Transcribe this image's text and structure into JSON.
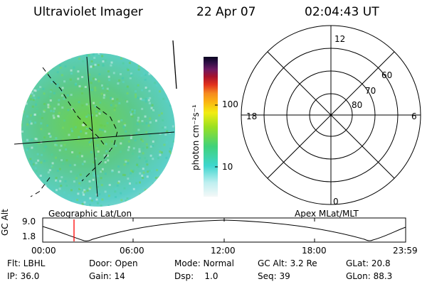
{
  "header": {
    "instrument": "Ultraviolet Imager",
    "date": "22 Apr 07",
    "time": "02:04:43 UT"
  },
  "colorbar": {
    "unit_label": "photon cm⁻²s⁻¹",
    "ticks": [
      "100",
      "10"
    ]
  },
  "polar_plot": {
    "mlt_labels": {
      "top": "12",
      "left": "18",
      "right": "6",
      "bottom": "0"
    },
    "lat_labels": [
      "60",
      "70",
      "80"
    ]
  },
  "orbit_panel": {
    "y_label": "GC Alt",
    "y_ticks": [
      "9.0",
      "1.8"
    ],
    "left_title": "Geographic Lat/Lon",
    "right_title": "Apex MLat/MLT",
    "x_ticks": [
      "00:00",
      "06:00",
      "12:00",
      "18:00",
      "23:59"
    ],
    "current_marker_color": "#ff0000"
  },
  "status": {
    "flt": "Flt: LBHL",
    "door": "Door: Open",
    "mode": "Mode: Normal",
    "gc_alt": "GC Alt: 3.2 Re",
    "glat": "GLat: 20.8",
    "ip": "IP: 36.0",
    "gain": "Gain: 14",
    "dsp": "Dsp:    1.0",
    "seq": "Seq: 39",
    "glon": "GLon: 88.3"
  }
}
